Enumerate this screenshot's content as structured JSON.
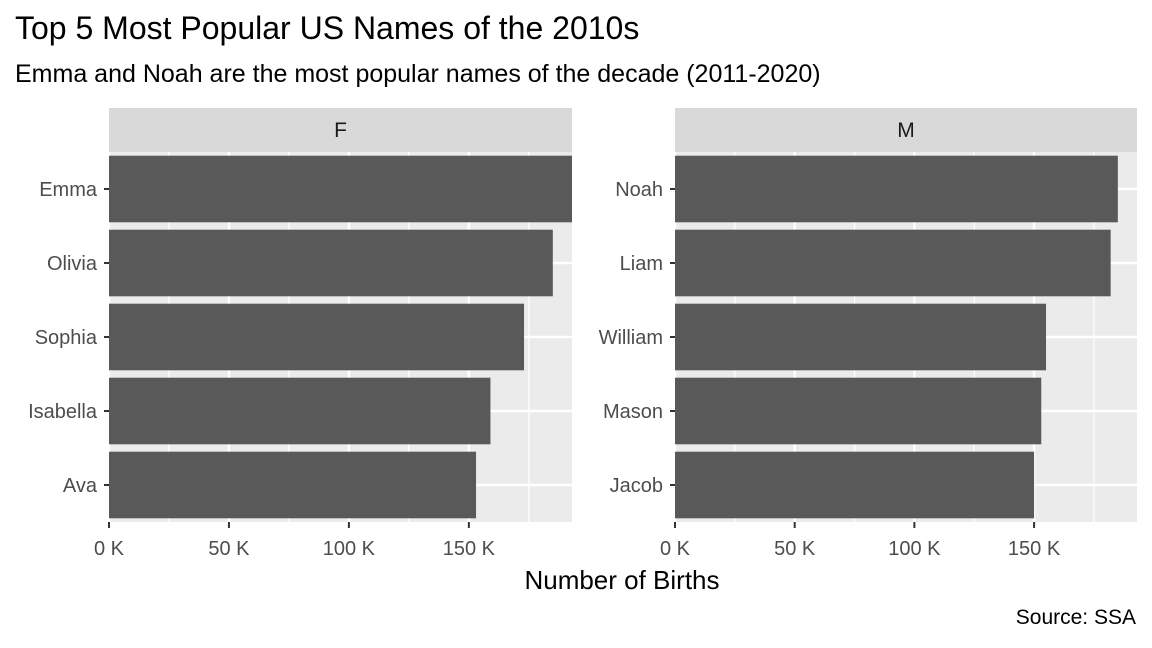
{
  "title": "Top 5 Most Popular US Names of the 2010s",
  "subtitle": "Emma and Noah are the most popular names of the decade (2011-2020)",
  "caption": "Source: SSA",
  "chart_data": {
    "type": "bar",
    "orientation": "horizontal",
    "xlabel": "Number of Births",
    "ylabel": "",
    "xlim": [
      0,
      193000
    ],
    "x_ticks": [
      0,
      50000,
      100000,
      150000
    ],
    "x_tick_labels": [
      "0 K",
      "50 K",
      "100 K",
      "150 K"
    ],
    "grid": true,
    "bar_color": "#595959",
    "panel_background": "#ebebeb",
    "strip_background": "#d9d9d9",
    "facets": [
      {
        "label": "F",
        "categories": [
          "Emma",
          "Olivia",
          "Sophia",
          "Isabella",
          "Ava"
        ],
        "values": [
          193000,
          185000,
          173000,
          159000,
          153000
        ]
      },
      {
        "label": "M",
        "categories": [
          "Noah",
          "Liam",
          "William",
          "Mason",
          "Jacob"
        ],
        "values": [
          185000,
          182000,
          155000,
          153000,
          150000
        ]
      }
    ]
  }
}
